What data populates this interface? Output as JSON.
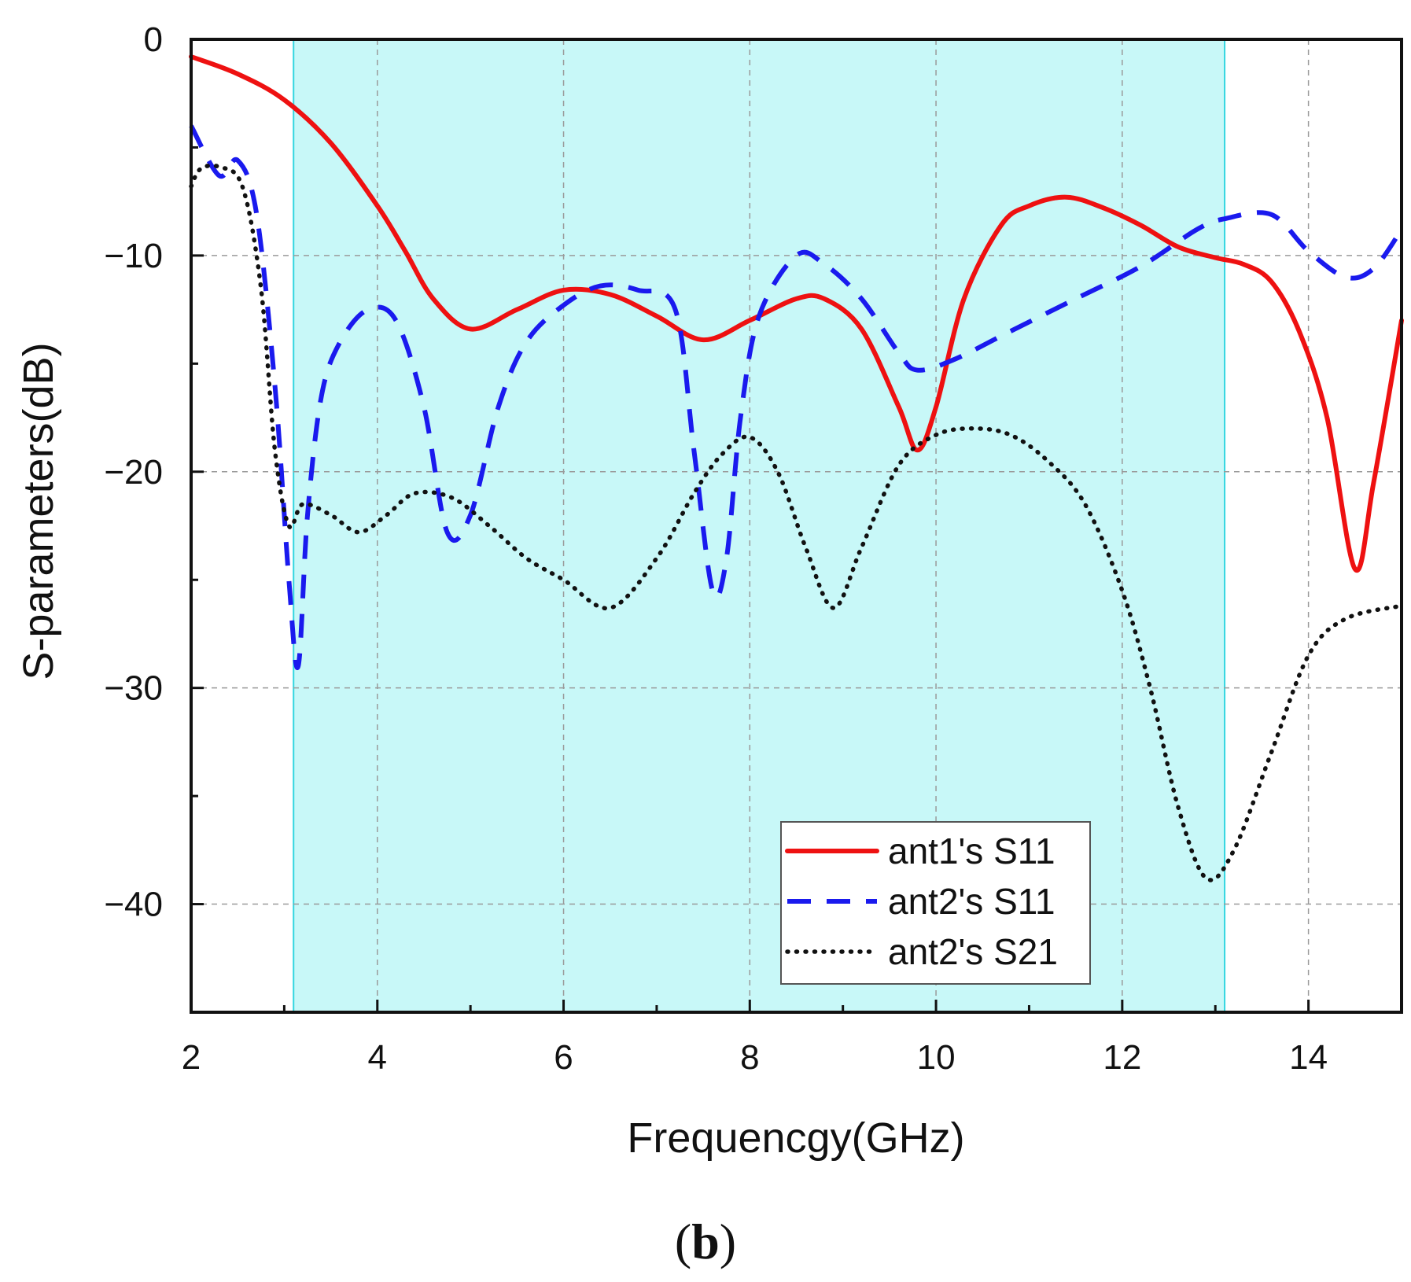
{
  "chart_data": {
    "type": "line",
    "title": "",
    "xlabel": "Frequencgy(GHz)",
    "ylabel": "S-parameters(dB)",
    "xlim": [
      2,
      15
    ],
    "ylim": [
      -45,
      0
    ],
    "xticks": [
      2,
      4,
      6,
      8,
      10,
      12,
      14
    ],
    "xtick_labels": [
      "2",
      "4",
      "6",
      "8",
      "10",
      "12",
      "14"
    ],
    "yticks": [
      0,
      -10,
      -20,
      -30,
      -40
    ],
    "ytick_labels": [
      "0",
      "−10",
      "−20",
      "−30",
      "−40"
    ],
    "grid": true,
    "highlight_band": {
      "x0": 3.1,
      "x1": 13.1,
      "fill": "#c8f8f8",
      "edge": "#33d6e0"
    },
    "legend_position": "bottom-right",
    "series": [
      {
        "name": "ant1's S11",
        "color": "#ee1111",
        "style": "solid",
        "x": [
          2.0,
          2.5,
          3.0,
          3.5,
          4.0,
          4.3,
          4.6,
          5.0,
          5.5,
          6.0,
          6.5,
          7.0,
          7.5,
          8.0,
          8.5,
          8.8,
          9.2,
          9.6,
          9.8,
          10.0,
          10.3,
          10.7,
          11.0,
          11.4,
          11.8,
          12.2,
          12.6,
          13.0,
          13.3,
          13.6,
          13.9,
          14.2,
          14.5,
          14.7,
          15.0
        ],
        "y": [
          -0.8,
          -1.6,
          -2.8,
          -4.8,
          -7.7,
          -9.8,
          -12.0,
          -13.4,
          -12.5,
          -11.6,
          -11.8,
          -12.8,
          -13.9,
          -13.0,
          -12.0,
          -12.0,
          -13.4,
          -17.0,
          -19.0,
          -17.0,
          -12.0,
          -8.6,
          -7.7,
          -7.3,
          -7.8,
          -8.6,
          -9.6,
          -10.1,
          -10.4,
          -11.2,
          -13.5,
          -17.5,
          -24.5,
          -20.5,
          -13.0
        ]
      },
      {
        "name": "ant2's S11",
        "color": "#1a1aee",
        "style": "dashed",
        "x": [
          2.0,
          2.3,
          2.5,
          2.7,
          2.9,
          3.05,
          3.15,
          3.25,
          3.4,
          3.6,
          3.9,
          4.2,
          4.5,
          4.75,
          5.0,
          5.3,
          5.6,
          6.0,
          6.4,
          6.8,
          7.2,
          7.4,
          7.6,
          7.75,
          7.9,
          8.1,
          8.5,
          8.8,
          9.2,
          9.6,
          9.8,
          10.2,
          10.8,
          11.5,
          12.2,
          12.8,
          13.1,
          13.6,
          14.0,
          14.4,
          14.7,
          15.0
        ],
        "y": [
          -4.0,
          -6.3,
          -5.6,
          -8.0,
          -16.0,
          -25.0,
          -29.0,
          -22.0,
          -16.5,
          -14.0,
          -12.5,
          -13.0,
          -17.0,
          -22.8,
          -22.0,
          -17.0,
          -14.0,
          -12.3,
          -11.4,
          -11.6,
          -12.5,
          -19.0,
          -25.5,
          -24.0,
          -17.5,
          -12.8,
          -10.0,
          -10.4,
          -12.0,
          -14.5,
          -15.3,
          -14.8,
          -13.5,
          -12.0,
          -10.5,
          -8.8,
          -8.3,
          -8.1,
          -9.8,
          -11.0,
          -10.6,
          -8.8
        ]
      },
      {
        "name": "ant2's S21",
        "color": "#111111",
        "style": "dotted",
        "x": [
          2.0,
          2.1,
          2.3,
          2.55,
          2.75,
          2.9,
          3.05,
          3.2,
          3.5,
          3.8,
          4.1,
          4.4,
          4.8,
          5.2,
          5.6,
          6.0,
          6.5,
          7.0,
          7.4,
          7.7,
          8.0,
          8.3,
          8.6,
          8.9,
          9.2,
          9.6,
          10.0,
          10.4,
          10.8,
          11.2,
          11.6,
          12.0,
          12.3,
          12.6,
          12.9,
          13.2,
          13.6,
          14.0,
          14.4,
          15.0
        ],
        "y": [
          -6.8,
          -6.0,
          -5.9,
          -6.8,
          -11.5,
          -19.0,
          -22.5,
          -21.5,
          -22.0,
          -22.8,
          -22.0,
          -21.0,
          -21.2,
          -22.5,
          -24.0,
          -25.0,
          -26.3,
          -24.0,
          -21.0,
          -19.2,
          -18.4,
          -20.0,
          -23.5,
          -26.3,
          -23.5,
          -19.7,
          -18.3,
          -18.0,
          -18.3,
          -19.5,
          -21.5,
          -25.5,
          -30.0,
          -35.5,
          -38.8,
          -37.5,
          -33.0,
          -28.5,
          -26.8,
          -26.2
        ]
      }
    ]
  },
  "caption": {
    "open": "(",
    "letter": "b",
    "close": ")"
  }
}
